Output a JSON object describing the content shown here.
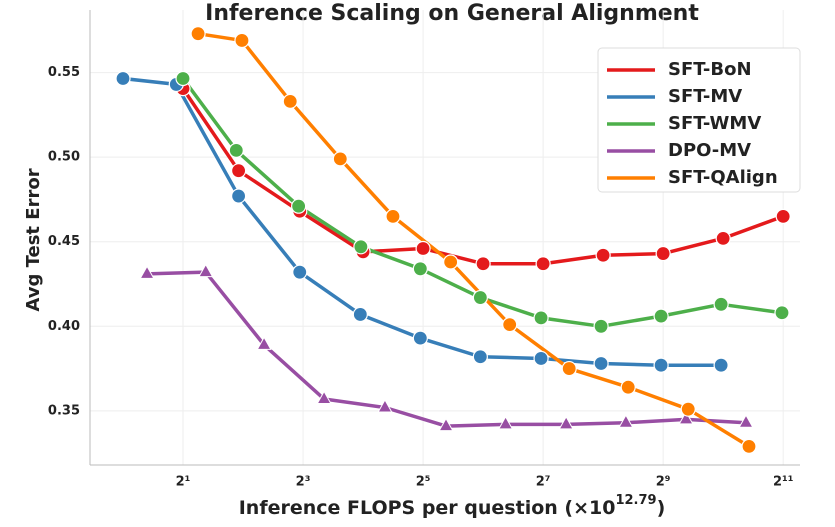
{
  "chart_data": {
    "type": "line",
    "title": "Inference Scaling on General Alignment",
    "xlabel": {
      "text": "Inference FLOPS per question (×10",
      "exponent": "12.79",
      "suffix": ")"
    },
    "ylabel": "Avg Test Error",
    "xscale": "log2",
    "xlim": [
      0.683,
      2487
    ],
    "ylim": [
      0.318,
      0.587
    ],
    "xticks": [
      {
        "value": 2,
        "label": "2¹"
      },
      {
        "value": 8,
        "label": "2³"
      },
      {
        "value": 32,
        "label": "2⁵"
      },
      {
        "value": 128,
        "label": "2⁷"
      },
      {
        "value": 512,
        "label": "2⁹"
      },
      {
        "value": 2048,
        "label": "2¹¹"
      }
    ],
    "yticks": [
      0.35,
      {
        "value": 0.4,
        "label": "0.40"
      },
      0.45,
      {
        "value": 0.5,
        "label": "0.50"
      },
      0.55
    ],
    "grid": true,
    "legend": "upper right",
    "series": [
      {
        "name": "SFT-BoN",
        "color": "#e41a1c",
        "marker": "circle",
        "x": [
          2,
          3.8,
          7.7,
          16,
          32,
          64,
          128,
          256,
          512,
          1024,
          2048
        ],
        "values": [
          0.5405,
          0.492,
          0.468,
          0.444,
          0.446,
          0.437,
          0.437,
          0.442,
          0.443,
          0.452,
          0.465
        ]
      },
      {
        "name": "SFT-MV",
        "color": "#377eb8",
        "marker": "circle",
        "x": [
          1,
          1.85,
          3.8,
          7.7,
          15.5,
          31,
          62,
          125,
          250,
          500,
          1000
        ],
        "values": [
          0.5465,
          0.543,
          0.477,
          0.432,
          0.407,
          0.393,
          0.382,
          0.381,
          0.378,
          0.377,
          0.377
        ]
      },
      {
        "name": "SFT-WMV",
        "color": "#4daf4a",
        "marker": "circle",
        "x": [
          2,
          3.7,
          7.6,
          15.6,
          31,
          62,
          125,
          250,
          500,
          1000,
          2020
        ],
        "values": [
          0.5465,
          0.504,
          0.471,
          0.447,
          0.434,
          0.417,
          0.405,
          0.4,
          0.406,
          0.413,
          0.408
        ]
      },
      {
        "name": "DPO-MV",
        "color": "#984ea3",
        "marker": "triangle",
        "x": [
          1.32,
          2.6,
          5.1,
          10.2,
          20.6,
          41.7,
          83,
          167,
          333,
          667,
          1333
        ],
        "values": [
          0.431,
          0.432,
          0.389,
          0.357,
          0.352,
          0.341,
          0.342,
          0.342,
          0.343,
          0.345,
          0.343
        ]
      },
      {
        "name": "SFT-QAlign",
        "color": "#ff7f00",
        "marker": "circle",
        "x": [
          2.38,
          3.95,
          6.9,
          12.3,
          22.6,
          44,
          87,
          173,
          342,
          684,
          1380
        ],
        "values": [
          0.573,
          0.569,
          0.533,
          0.499,
          0.465,
          0.438,
          0.401,
          0.375,
          0.364,
          0.351,
          0.329
        ]
      }
    ]
  }
}
